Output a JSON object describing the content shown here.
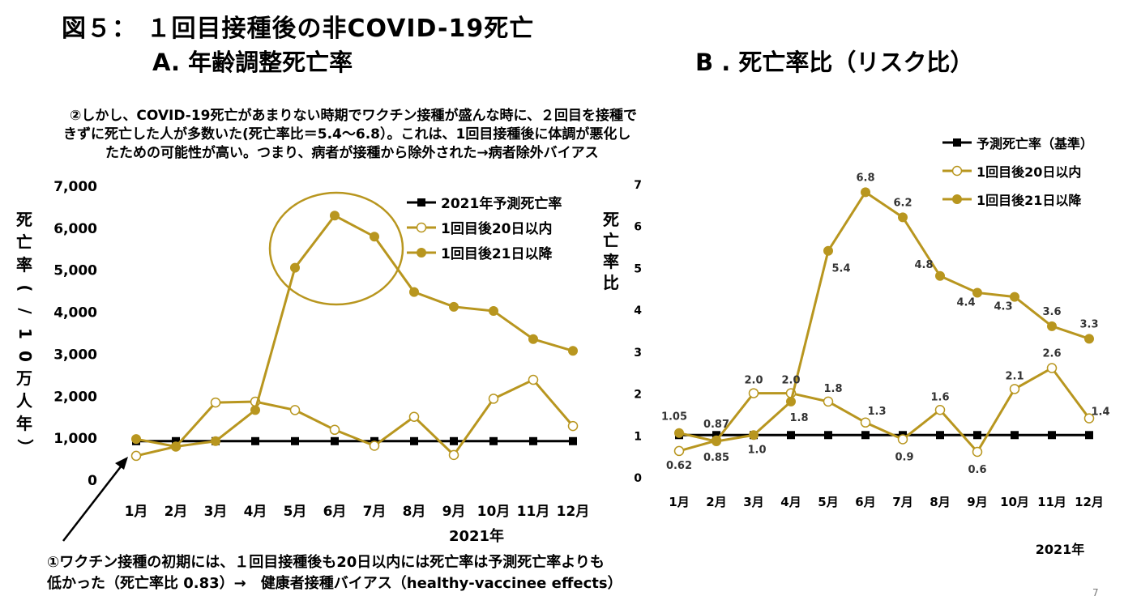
{
  "header": {
    "title": "図５： １回目接種後の非COVID-19死亡",
    "subtitle_a": "A. 年齢調整死亡率",
    "subtitle_b": "B . 死亡率比（リスク比）"
  },
  "annotations": {
    "note2_line1": "②しかし、COVID-19死亡があまりない時期でワクチン接種が盛んな時に、２回目を接種で",
    "note2_line2": "きずに死亡した人が多数いた(死亡率比＝5.4～6.8）。これは、1回目接種後に体調が悪化し",
    "note2_line3": "たための可能性が高い。つまり、病者が接種から除外された→病者除外バイアス",
    "note1_line1": "①ワクチン接種の初期には、１回目接種後も20日以内には死亡率は予測死亡率よりも",
    "note1_line2": "低かった（死亡率比 0.83）→　健康者接種バイアス（healthy-vaccinee effects）",
    "page_number": "7"
  },
  "colors": {
    "gold": "#b8961f",
    "black": "#000000",
    "highlight_circle": "#b8961f"
  },
  "chart_data": [
    {
      "type": "line",
      "ylabel": "死亡率(/10万人年）",
      "xlabel": "2021年",
      "categories": [
        "1月",
        "2月",
        "3月",
        "4月",
        "5月",
        "6月",
        "7月",
        "8月",
        "9月",
        "10月",
        "11月",
        "12月"
      ],
      "ylim": [
        0,
        7000
      ],
      "yticks": [
        0,
        1000,
        2000,
        3000,
        4000,
        5000,
        6000,
        7000
      ],
      "ytick_labels": [
        "0",
        "1,000",
        "2,000",
        "3,000",
        "4,000",
        "5,000",
        "6,000",
        "7,000"
      ],
      "legend_position": "top-right",
      "grid": false,
      "series": [
        {
          "name": "2021年予測死亡率",
          "marker": "square-filled",
          "color": "#000000",
          "values": [
            930,
            930,
            930,
            930,
            930,
            930,
            930,
            930,
            930,
            930,
            930,
            930
          ]
        },
        {
          "name": "1回目後20日以内",
          "marker": "circle-open",
          "color": "#b8961f",
          "values": [
            580,
            800,
            1850,
            1870,
            1670,
            1200,
            820,
            1510,
            600,
            1940,
            2390,
            1290
          ]
        },
        {
          "name": "1回目後21日以降",
          "marker": "circle-filled",
          "color": "#b8961f",
          "values": [
            980,
            800,
            930,
            1670,
            5060,
            6300,
            5800,
            4480,
            4130,
            4030,
            3360,
            3080
          ]
        }
      ]
    },
    {
      "type": "line",
      "ylabel": "死亡率比",
      "xlabel": "2021年",
      "categories": [
        "1月",
        "2月",
        "3月",
        "4月",
        "5月",
        "6月",
        "7月",
        "8月",
        "9月",
        "10月",
        "11月",
        "12月"
      ],
      "ylim": [
        0,
        7
      ],
      "yticks": [
        0,
        1,
        2,
        3,
        4,
        5,
        6,
        7
      ],
      "ytick_labels": [
        "0",
        "1",
        "2",
        "3",
        "4",
        "5",
        "6",
        "7"
      ],
      "legend_position": "top-right",
      "grid": false,
      "series": [
        {
          "name": "予測死亡率（基準）",
          "marker": "square-filled",
          "color": "#000000",
          "values": [
            1,
            1,
            1,
            1,
            1,
            1,
            1,
            1,
            1,
            1,
            1,
            1
          ]
        },
        {
          "name": "1回目後20日以内",
          "marker": "circle-open",
          "color": "#b8961f",
          "values": [
            0.62,
            0.87,
            2.0,
            2.0,
            1.8,
            1.3,
            0.9,
            1.6,
            0.6,
            2.1,
            2.6,
            1.4
          ],
          "data_labels": [
            "0.62",
            "0.87",
            "2.0",
            "2.0",
            "1.8",
            "1.3",
            "0.9",
            "1.6",
            "0.6",
            "2.1",
            "2.6",
            "1.4"
          ]
        },
        {
          "name": "1回目後21日以降",
          "marker": "circle-filled",
          "color": "#b8961f",
          "values": [
            1.05,
            0.85,
            1.0,
            1.8,
            5.4,
            6.8,
            6.2,
            4.8,
            4.4,
            4.3,
            3.6,
            3.3
          ],
          "data_labels": [
            "1.05",
            "0.85",
            "1.0",
            "1.8",
            "5.4",
            "6.8",
            "6.2",
            "4.8",
            "4.4",
            "4.3",
            "3.6",
            "3.3"
          ]
        }
      ]
    }
  ]
}
